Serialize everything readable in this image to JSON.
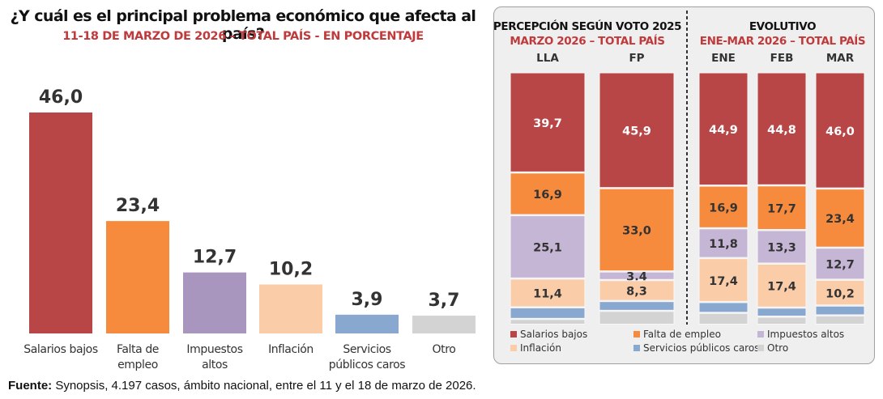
{
  "title": "¿Y cuál es el principal problema económico que afecta al país?",
  "subtitle": "11-18 DE MARZO DE 2026 – TOTAL PAÍS - EN PORCENTAJE",
  "panel": {
    "left_heading": "PERCEPCIÓN SEGÚN VOTO 2025",
    "left_subheading": "MARZO 2026 – TOTAL PAÍS",
    "right_heading": "EVOLUTIVO",
    "right_subheading": "ENE-MAR 2026 – TOTAL PAÍS"
  },
  "footer": {
    "label": "Fuente:",
    "text": " Synopsis, 4.197 casos, ámbito nacional, entre el 11 y el 18 de marzo de 2026."
  },
  "colors": {
    "Salarios bajos": "#b84646",
    "Falta de empleo": "#f68b3e",
    "Impuestos altos": "#c5b6d6",
    "Impuestos altos (left)": "#a896bf",
    "Inflación": "#fbcca8",
    "Servicios públicos caros": "#89a8d0",
    "Otro": "#d3d3d3",
    "accent": "#c0393b"
  },
  "chart_data": [
    {
      "type": "bar",
      "title": "¿Y cuál es el principal problema económico que afecta al país?",
      "subtitle": "11-18 DE MARZO DE 2026 – TOTAL PAÍS - EN PORCENTAJE",
      "categories": [
        "Salarios bajos",
        "Falta de empleo",
        "Impuestos altos",
        "Inflación",
        "Servicios públicos caros",
        "Otro"
      ],
      "category_labels": [
        [
          "Salarios bajos"
        ],
        [
          "Falta de",
          "empleo"
        ],
        [
          "Impuestos",
          "altos"
        ],
        [
          "Inflación"
        ],
        [
          "Servicios",
          "públicos caros"
        ],
        [
          "Otro"
        ]
      ],
      "values": [
        46.0,
        23.4,
        12.7,
        10.2,
        3.9,
        3.7
      ],
      "value_labels": [
        "46,0",
        "23,4",
        "12,7",
        "10,2",
        "3,9",
        "3,7"
      ],
      "xlabel": "",
      "ylabel": "",
      "ylim": [
        0,
        46
      ],
      "grid": false
    },
    {
      "type": "bar",
      "stacked": true,
      "groups": [
        {
          "heading": "PERCEPCIÓN SEGÚN VOTO 2025",
          "subheading": "MARZO 2026 – TOTAL PAÍS",
          "categories": [
            "LLA",
            "FP"
          ]
        },
        {
          "heading": "EVOLUTIVO",
          "subheading": "ENE-MAR 2026 – TOTAL PAÍS",
          "categories": [
            "ENE",
            "FEB",
            "MAR"
          ]
        }
      ],
      "categories": [
        "LLA",
        "FP",
        "ENE",
        "FEB",
        "MAR"
      ],
      "series": [
        {
          "name": "Salarios bajos",
          "values": [
            39.7,
            45.9,
            44.9,
            44.8,
            46.0
          ],
          "labels": [
            "39,7",
            "45,9",
            "44,9",
            "44,8",
            "46,0"
          ]
        },
        {
          "name": "Falta de empleo",
          "values": [
            16.9,
            33.0,
            16.9,
            17.7,
            23.4
          ],
          "labels": [
            "16,9",
            "33,0",
            "16,9",
            "17,7",
            "23,4"
          ]
        },
        {
          "name": "Impuestos altos",
          "values": [
            25.1,
            3.4,
            11.8,
            13.3,
            12.7
          ],
          "labels": [
            "25,1",
            "3,4",
            "11,8",
            "13,3",
            "12,7"
          ]
        },
        {
          "name": "Inflación",
          "values": [
            11.4,
            8.3,
            17.4,
            17.4,
            10.2
          ],
          "labels": [
            "11,4",
            "8,3",
            "17,4",
            "17,4",
            "10,2"
          ]
        },
        {
          "name": "Servicios públicos caros",
          "values": [
            4.6,
            3.9,
            4.3,
            3.6,
            3.9
          ],
          "labels": [
            "",
            "",
            "",
            "",
            ""
          ]
        },
        {
          "name": "Otro",
          "values": [
            2.3,
            5.5,
            4.7,
            3.2,
            3.7
          ],
          "labels": [
            "",
            "",
            "",
            "",
            ""
          ]
        }
      ],
      "legend": [
        "Salarios bajos",
        "Falta de empleo",
        "Impuestos altos",
        "Inflación",
        "Servicios públicos caros",
        "Otro"
      ],
      "legend_position": "bottom",
      "ylim": [
        0,
        100
      ],
      "grid": false
    }
  ]
}
